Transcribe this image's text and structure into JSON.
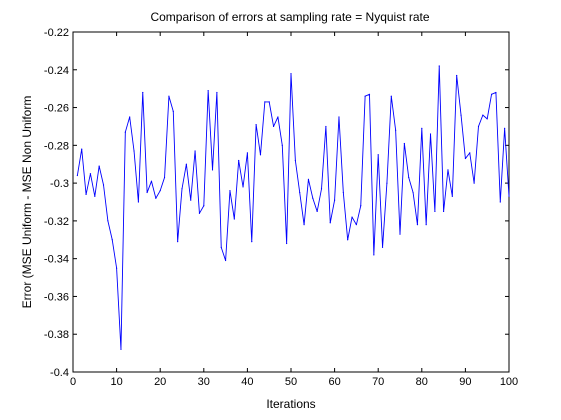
{
  "chart_data": {
    "type": "line",
    "title": "Comparison of errors at sampling rate = Nyquist rate",
    "xlabel": "Iterations",
    "ylabel": "Error (MSE Uniform - MSE Non Uniform",
    "xlim": [
      0,
      100
    ],
    "ylim": [
      -0.4,
      -0.22
    ],
    "xticks": [
      0,
      10,
      20,
      30,
      40,
      50,
      60,
      70,
      80,
      90,
      100
    ],
    "yticks": [
      -0.4,
      -0.38,
      -0.36,
      -0.34,
      -0.32,
      -0.3,
      -0.28,
      -0.26,
      -0.24,
      -0.22
    ],
    "xtick_labels": [
      "0",
      "10",
      "20",
      "30",
      "40",
      "50",
      "60",
      "70",
      "80",
      "90",
      "100"
    ],
    "ytick_labels": [
      "-0.4",
      "-0.38",
      "-0.36",
      "-0.34",
      "-0.32",
      "-0.3",
      "-0.28",
      "-0.26",
      "-0.24",
      "-0.22"
    ],
    "grid": false,
    "line_color": "#0000ff",
    "series": [
      {
        "x": [
          1,
          2,
          3,
          4,
          5,
          6,
          7,
          8,
          9,
          10,
          11,
          12,
          13,
          14,
          15,
          16,
          17,
          18,
          19,
          20,
          21,
          22,
          23,
          24,
          25,
          26,
          27,
          28,
          29,
          30,
          31,
          32,
          33,
          34,
          35,
          36,
          37,
          38,
          39,
          40,
          41,
          42,
          43,
          44,
          45,
          46,
          47,
          48,
          49,
          50,
          51,
          52,
          53,
          54,
          55,
          56,
          57,
          58,
          59,
          60,
          61,
          62,
          63,
          64,
          65,
          66,
          67,
          68,
          69,
          70,
          71,
          72,
          73,
          74,
          75,
          76,
          77,
          78,
          79,
          80,
          81,
          82,
          83,
          84,
          85,
          86,
          87,
          88,
          89,
          90,
          91,
          92,
          93,
          94,
          95,
          96,
          97,
          98,
          99,
          100
        ],
        "values": [
          -0.296,
          -0.282,
          -0.306,
          -0.295,
          -0.307,
          -0.291,
          -0.301,
          -0.32,
          -0.33,
          -0.345,
          -0.388,
          -0.273,
          -0.265,
          -0.283,
          -0.31,
          -0.252,
          -0.305,
          -0.299,
          -0.308,
          -0.304,
          -0.297,
          -0.254,
          -0.262,
          -0.331,
          -0.303,
          -0.29,
          -0.309,
          -0.283,
          -0.316,
          -0.312,
          -0.251,
          -0.293,
          -0.252,
          -0.334,
          -0.341,
          -0.304,
          -0.319,
          -0.288,
          -0.302,
          -0.284,
          -0.331,
          -0.269,
          -0.285,
          -0.257,
          -0.257,
          -0.27,
          -0.265,
          -0.28,
          -0.332,
          -0.242,
          -0.288,
          -0.305,
          -0.322,
          -0.298,
          -0.308,
          -0.315,
          -0.303,
          -0.27,
          -0.321,
          -0.309,
          -0.265,
          -0.305,
          -0.33,
          -0.318,
          -0.322,
          -0.312,
          -0.254,
          -0.253,
          -0.338,
          -0.285,
          -0.334,
          -0.3,
          -0.254,
          -0.272,
          -0.327,
          -0.279,
          -0.297,
          -0.305,
          -0.322,
          -0.271,
          -0.322,
          -0.274,
          -0.315,
          -0.238,
          -0.315,
          -0.293,
          -0.307,
          -0.243,
          -0.264,
          -0.287,
          -0.284,
          -0.3,
          -0.27,
          -0.264,
          -0.266,
          -0.253,
          -0.252,
          -0.31,
          -0.271,
          -0.307
        ]
      }
    ]
  }
}
